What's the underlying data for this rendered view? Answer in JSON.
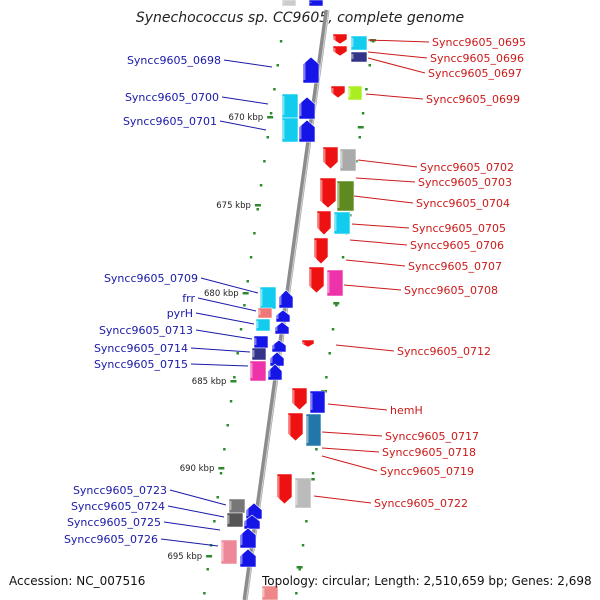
{
  "title": "Synechococcus sp. CC9605, complete genome",
  "footer": {
    "accession": "Accession: NC_007516",
    "summary": "Topology: circular; Length: 2,510,659 bp; Genes: 2,698"
  },
  "colors": {
    "left_label": "#1a1aa8",
    "right_label": "#cc1a1a",
    "backbone": "#8c8c8c",
    "tick": "#2d8a2d"
  },
  "scale_labels": [
    "670 kbp",
    "675 kbp",
    "680 kbp",
    "685 kbp",
    "690 kbp",
    "695 kbp"
  ],
  "left_genes": [
    "Syncc9605_0698",
    "Syncc9605_0700",
    "Syncc9605_0701",
    "Syncc9605_0709",
    "frr",
    "pyrH",
    "Syncc9605_0713",
    "Syncc9605_0714",
    "Syncc9605_0715",
    "Syncc9605_0723",
    "Syncc9605_0724",
    "Syncc9605_0725",
    "Syncc9605_0726"
  ],
  "right_genes": [
    "Syncc9605_0695",
    "Syncc9605_0696",
    "Syncc9605_0697",
    "Syncc9605_0699",
    "Syncc9605_0702",
    "Syncc9605_0703",
    "Syncc9605_0704",
    "Syncc9605_0705",
    "Syncc9605_0706",
    "Syncc9605_0707",
    "Syncc9605_0708",
    "Syncc9605_0712",
    "hemH",
    "Syncc9605_0717",
    "Syncc9605_0718",
    "Syncc9605_0719",
    "Syncc9605_0722"
  ]
}
